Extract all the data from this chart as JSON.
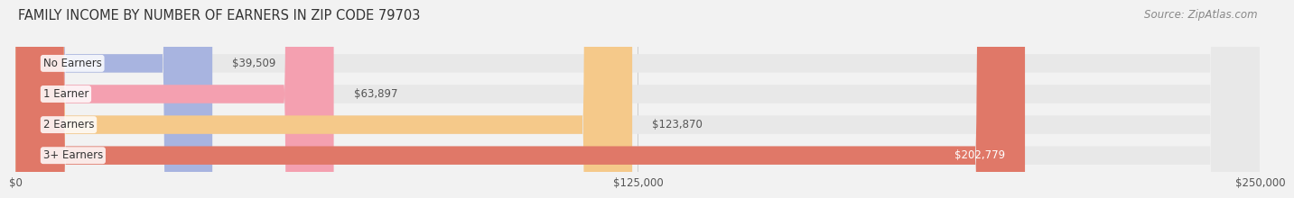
{
  "title": "FAMILY INCOME BY NUMBER OF EARNERS IN ZIP CODE 79703",
  "source": "Source: ZipAtlas.com",
  "categories": [
    "No Earners",
    "1 Earner",
    "2 Earners",
    "3+ Earners"
  ],
  "values": [
    39509,
    63897,
    123870,
    202779
  ],
  "bar_colors": [
    "#a8b4e0",
    "#f4a0b0",
    "#f5c98a",
    "#e07868"
  ],
  "label_colors": [
    "#333333",
    "#333333",
    "#333333",
    "#ffffff"
  ],
  "value_labels": [
    "$39,509",
    "$63,897",
    "$123,870",
    "$202,779"
  ],
  "xlim": [
    0,
    250000
  ],
  "xtick_values": [
    0,
    125000,
    250000
  ],
  "xtick_labels": [
    "$0",
    "$125,000",
    "$250,000"
  ],
  "background_color": "#f2f2f2",
  "bar_background_color": "#e8e8e8",
  "title_fontsize": 10.5,
  "source_fontsize": 8.5,
  "label_fontsize": 8.5,
  "value_fontsize": 8.5
}
